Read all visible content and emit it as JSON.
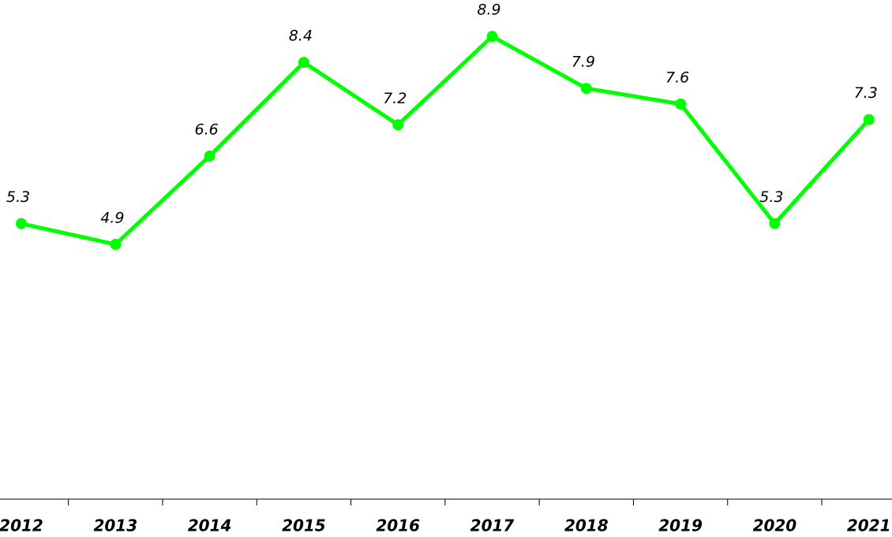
{
  "chart_data": {
    "type": "line",
    "categories": [
      "2012",
      "2013",
      "2014",
      "2015",
      "2016",
      "2017",
      "2018",
      "2019",
      "2020",
      "2021"
    ],
    "values": [
      5.3,
      4.9,
      6.6,
      8.4,
      7.2,
      8.9,
      7.9,
      7.6,
      5.3,
      7.3
    ],
    "color": "#00ff00",
    "ylim": [
      0,
      9.6
    ]
  }
}
